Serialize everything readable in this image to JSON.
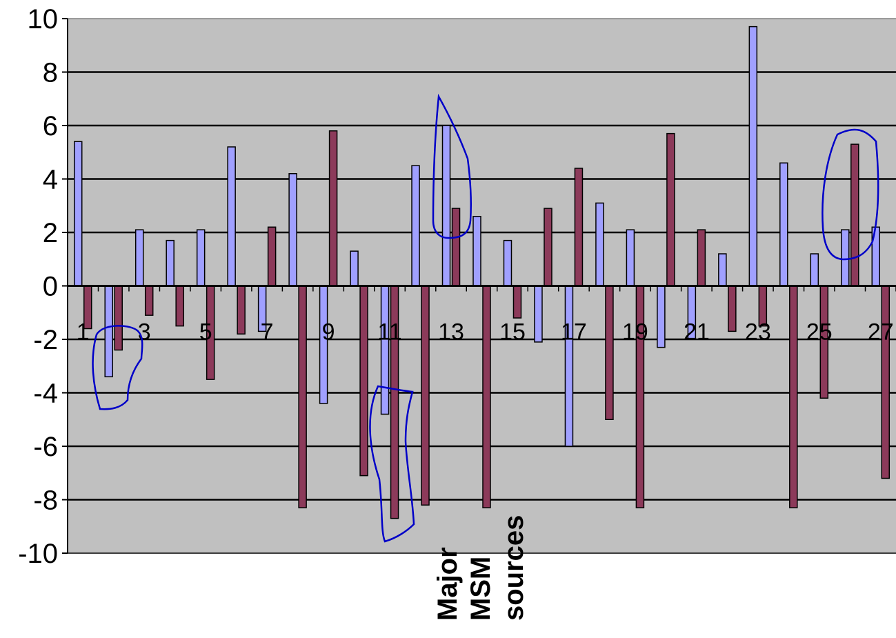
{
  "chart_data": {
    "type": "bar",
    "title": "",
    "xlabel": "Major MSM sources",
    "xlabel_lines": [
      "Major",
      "MSM",
      "sources"
    ],
    "ylabel": "",
    "ylim": [
      -10,
      10
    ],
    "yticks": [
      -10,
      -8,
      -6,
      -4,
      -2,
      0,
      2,
      4,
      6,
      8,
      10
    ],
    "grid": true,
    "legend": "none",
    "categories": [
      "1",
      "2",
      "3",
      "4",
      "5",
      "6",
      "7",
      "8",
      "9",
      "10",
      "11",
      "12",
      "13",
      "14",
      "15",
      "16",
      "17",
      "18",
      "19",
      "20",
      "21",
      "22",
      "23",
      "24",
      "25",
      "26",
      "27"
    ],
    "xtick_labels": [
      "1",
      "",
      "3",
      "",
      "5",
      "",
      "7",
      "",
      "9",
      "",
      "11",
      "",
      "13",
      "",
      "15",
      "",
      "17",
      "",
      "19",
      "",
      "21",
      "",
      "23",
      "",
      "25",
      "",
      "27"
    ],
    "series": [
      {
        "color": "#a0a0ff",
        "values": [
          5.4,
          -3.4,
          2.1,
          1.7,
          2.1,
          5.2,
          -1.7,
          4.2,
          -4.4,
          1.3,
          -4.8,
          4.5,
          6.0,
          2.6,
          1.7,
          -2.1,
          -6.0,
          3.1,
          2.1,
          -2.3,
          -2.0,
          1.2,
          9.7,
          4.6,
          1.2,
          2.1,
          2.2
        ]
      },
      {
        "color": "#8c3a5a",
        "values": [
          -1.6,
          -2.4,
          -1.1,
          -1.5,
          -3.5,
          -1.8,
          2.2,
          -8.3,
          5.8,
          -7.1,
          -8.7,
          -8.2,
          2.9,
          -8.3,
          -1.2,
          2.9,
          4.4,
          -5.0,
          -8.3,
          5.7,
          2.1,
          -1.7,
          -1.5,
          -8.3,
          -4.2,
          5.3,
          -7.2
        ]
      }
    ],
    "annotations": "hand-drawn blue loops around selected bars"
  },
  "colors": {
    "plot_background": "#c0c0c0",
    "gridline": "#000000",
    "annotation_stroke": "#0000c8"
  }
}
